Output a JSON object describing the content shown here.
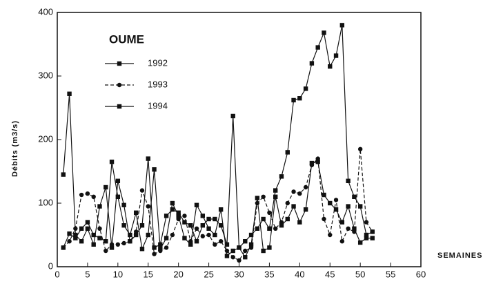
{
  "chart_data": {
    "type": "line",
    "title": "OUME",
    "y_label": "Débits (m3/s)",
    "x_label": "SEMAINES",
    "x": [
      1,
      2,
      3,
      4,
      5,
      6,
      7,
      8,
      9,
      10,
      11,
      12,
      13,
      14,
      15,
      16,
      17,
      18,
      19,
      20,
      21,
      22,
      23,
      24,
      25,
      26,
      27,
      28,
      29,
      30,
      31,
      32,
      33,
      34,
      35,
      36,
      37,
      38,
      39,
      40,
      41,
      42,
      43,
      44,
      45,
      46,
      47,
      48,
      49,
      50,
      51,
      52
    ],
    "series": [
      {
        "name": "1992",
        "color": "#111111",
        "marker": "square",
        "dashed": false,
        "values": [
          145,
          272,
          50,
          40,
          60,
          35,
          95,
          125,
          30,
          135,
          97,
          40,
          50,
          65,
          170,
          30,
          35,
          80,
          90,
          85,
          70,
          65,
          40,
          65,
          75,
          75,
          65,
          35,
          237,
          30,
          40,
          50,
          60,
          75,
          60,
          120,
          142,
          180,
          262,
          265,
          280,
          320,
          345,
          368,
          315,
          332,
          380,
          135,
          110,
          95,
          50,
          55
        ]
      },
      {
        "name": "1993",
        "color": "#111111",
        "marker": "circle",
        "dashed": true,
        "values": [
          30,
          40,
          60,
          113,
          115,
          110,
          60,
          25,
          35,
          35,
          37,
          40,
          55,
          120,
          95,
          20,
          25,
          30,
          50,
          75,
          80,
          40,
          60,
          48,
          50,
          35,
          40,
          25,
          15,
          10,
          25,
          30,
          100,
          110,
          85,
          60,
          70,
          100,
          118,
          115,
          125,
          160,
          170,
          75,
          50,
          105,
          40,
          60,
          55,
          185,
          70,
          55
        ]
      },
      {
        "name": "1994",
        "color": "#111111",
        "marker": "square",
        "dashed": false,
        "values": [
          30,
          52,
          45,
          60,
          70,
          50,
          45,
          40,
          165,
          110,
          65,
          50,
          85,
          28,
          50,
          153,
          28,
          45,
          100,
          80,
          45,
          35,
          97,
          80,
          60,
          50,
          90,
          17,
          25,
          30,
          15,
          35,
          108,
          25,
          30,
          110,
          65,
          75,
          95,
          70,
          90,
          163,
          165,
          113,
          100,
          90,
          70,
          95,
          60,
          38,
          45,
          45
        ]
      }
    ],
    "xlim": [
      0,
      60
    ],
    "xticks": [
      0,
      5,
      10,
      15,
      20,
      25,
      30,
      35,
      40,
      45,
      50,
      55,
      60
    ],
    "ylim": [
      0,
      400
    ],
    "yticks": [
      0,
      100,
      200,
      300,
      400
    ]
  }
}
